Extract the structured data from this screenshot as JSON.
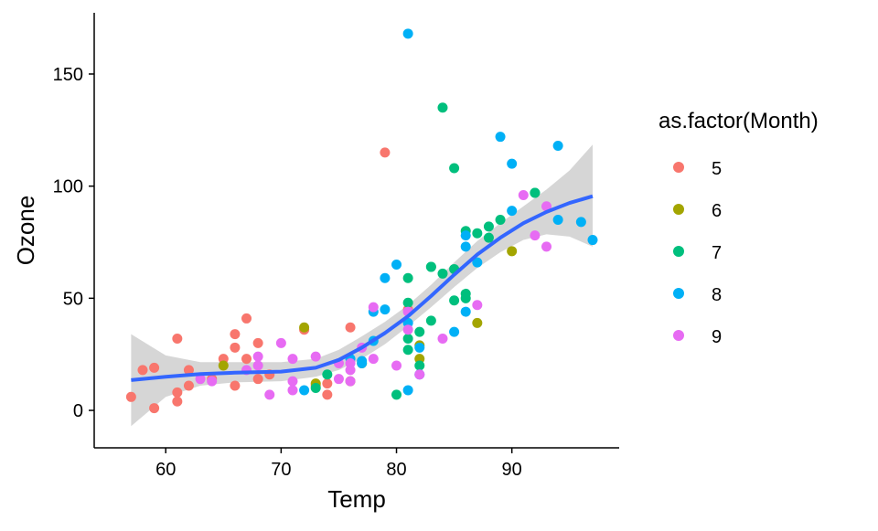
{
  "chart_data": {
    "type": "scatter",
    "title": "",
    "xlabel": "Temp",
    "ylabel": "Ozone",
    "xlim": [
      53.8,
      99.3
    ],
    "ylim": [
      -16.7,
      177.3
    ],
    "xticks": [
      60,
      70,
      80,
      90
    ],
    "yticks": [
      0,
      50,
      100,
      150
    ],
    "grid": false,
    "legend": {
      "title": "as.factor(Month)",
      "placement": "right"
    },
    "series": [
      {
        "name": "5",
        "color": "#F8766D",
        "points": [
          [
            67,
            41
          ],
          [
            72,
            36
          ],
          [
            74,
            12
          ],
          [
            62,
            18
          ],
          [
            66,
            28
          ],
          [
            65,
            23
          ],
          [
            59,
            19
          ],
          [
            61,
            8
          ],
          [
            74,
            7
          ],
          [
            69,
            16
          ],
          [
            66,
            11
          ],
          [
            68,
            14
          ],
          [
            58,
            18
          ],
          [
            64,
            14
          ],
          [
            66,
            34
          ],
          [
            57,
            6
          ],
          [
            68,
            30
          ],
          [
            62,
            11
          ],
          [
            59,
            1
          ],
          [
            73,
            11
          ],
          [
            61,
            4
          ],
          [
            61,
            32
          ],
          [
            67,
            23
          ],
          [
            81,
            45
          ],
          [
            79,
            115
          ],
          [
            76,
            37
          ]
        ]
      },
      {
        "name": "6",
        "color": "#A3A500",
        "points": [
          [
            82,
            29
          ],
          [
            90,
            71
          ],
          [
            87,
            39
          ],
          [
            82,
            23
          ],
          [
            77,
            21
          ],
          [
            72,
            37
          ],
          [
            65,
            20
          ],
          [
            73,
            12
          ],
          [
            76,
            13
          ]
        ]
      },
      {
        "name": "7",
        "color": "#00BF7D",
        "points": [
          [
            84,
            135
          ],
          [
            85,
            49
          ],
          [
            81,
            32
          ],
          [
            83,
            64
          ],
          [
            83,
            40
          ],
          [
            88,
            77
          ],
          [
            92,
            97
          ],
          [
            92,
            97
          ],
          [
            89,
            85
          ],
          [
            73,
            10
          ],
          [
            81,
            27
          ],
          [
            80,
            7
          ],
          [
            81,
            48
          ],
          [
            82,
            35
          ],
          [
            84,
            61
          ],
          [
            87,
            79
          ],
          [
            85,
            63
          ],
          [
            74,
            16
          ],
          [
            86,
            80
          ],
          [
            85,
            108
          ],
          [
            82,
            20
          ],
          [
            86,
            52
          ],
          [
            88,
            82
          ],
          [
            86,
            50
          ],
          [
            83,
            64
          ],
          [
            81,
            59
          ]
        ]
      },
      {
        "name": "8",
        "color": "#00B0F6",
        "points": [
          [
            81,
            39
          ],
          [
            81,
            9
          ],
          [
            82,
            16
          ],
          [
            86,
            78
          ],
          [
            85,
            35
          ],
          [
            87,
            66
          ],
          [
            89,
            122
          ],
          [
            90,
            89
          ],
          [
            90,
            110
          ],
          [
            86,
            44
          ],
          [
            82,
            28
          ],
          [
            80,
            65
          ],
          [
            77,
            22
          ],
          [
            79,
            59
          ],
          [
            76,
            23
          ],
          [
            78,
            31
          ],
          [
            78,
            44
          ],
          [
            77,
            21
          ],
          [
            72,
            9
          ],
          [
            79,
            45
          ],
          [
            81,
            168
          ],
          [
            86,
            73
          ],
          [
            97,
            76
          ],
          [
            94,
            118
          ],
          [
            96,
            84
          ],
          [
            94,
            85
          ]
        ]
      },
      {
        "name": "9",
        "color": "#E76BF3",
        "points": [
          [
            91,
            96
          ],
          [
            92,
            78
          ],
          [
            93,
            73
          ],
          [
            93,
            91
          ],
          [
            87,
            47
          ],
          [
            84,
            32
          ],
          [
            80,
            20
          ],
          [
            78,
            23
          ],
          [
            75,
            21
          ],
          [
            73,
            24
          ],
          [
            81,
            44
          ],
          [
            76,
            21
          ],
          [
            77,
            28
          ],
          [
            71,
            9
          ],
          [
            71,
            13
          ],
          [
            78,
            46
          ],
          [
            67,
            18
          ],
          [
            76,
            13
          ],
          [
            68,
            24
          ],
          [
            82,
            16
          ],
          [
            64,
            13
          ],
          [
            71,
            23
          ],
          [
            81,
            36
          ],
          [
            69,
            7
          ],
          [
            63,
            14
          ],
          [
            70,
            30
          ],
          [
            75,
            14
          ],
          [
            76,
            18
          ],
          [
            68,
            20
          ]
        ]
      }
    ],
    "smooth": {
      "color": "#3366FF",
      "fit": [
        [
          57,
          13.5
        ],
        [
          60,
          15
        ],
        [
          63,
          16.2
        ],
        [
          66,
          16.8
        ],
        [
          70,
          17.3
        ],
        [
          73,
          19
        ],
        [
          75,
          22.5
        ],
        [
          77,
          28
        ],
        [
          79,
          34.5
        ],
        [
          81,
          42
        ],
        [
          83,
          51
        ],
        [
          85,
          60.5
        ],
        [
          87,
          69.5
        ],
        [
          89,
          77
        ],
        [
          91,
          83.5
        ],
        [
          93,
          88.5
        ],
        [
          95,
          92.5
        ],
        [
          97,
          95.5
        ]
      ],
      "lower": [
        [
          57,
          -7
        ],
        [
          60,
          6
        ],
        [
          63,
          11
        ],
        [
          66,
          12.5
        ],
        [
          70,
          13
        ],
        [
          73,
          15
        ],
        [
          75,
          18
        ],
        [
          77,
          23
        ],
        [
          79,
          29.5
        ],
        [
          81,
          37.5
        ],
        [
          83,
          46
        ],
        [
          85,
          55
        ],
        [
          87,
          63.5
        ],
        [
          89,
          70.5
        ],
        [
          91,
          76
        ],
        [
          93,
          78.5
        ],
        [
          95,
          77.5
        ],
        [
          97,
          73
        ]
      ],
      "upper": [
        [
          57,
          34
        ],
        [
          60,
          24.5
        ],
        [
          63,
          21.5
        ],
        [
          66,
          21.5
        ],
        [
          70,
          21.5
        ],
        [
          73,
          23
        ],
        [
          75,
          27
        ],
        [
          77,
          33
        ],
        [
          79,
          39.5
        ],
        [
          81,
          47
        ],
        [
          83,
          56
        ],
        [
          85,
          66
        ],
        [
          87,
          75.5
        ],
        [
          89,
          83.5
        ],
        [
          91,
          91
        ],
        [
          93,
          98.5
        ],
        [
          95,
          107
        ],
        [
          97,
          118.5
        ]
      ]
    }
  }
}
